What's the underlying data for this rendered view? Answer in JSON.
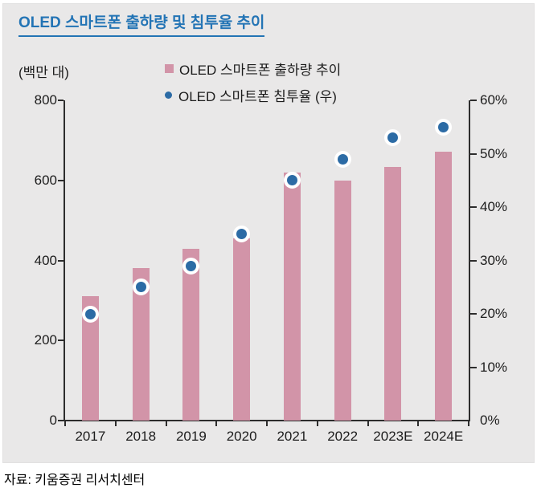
{
  "title": "OLED 스마트폰 출하량 및 침투율 추이",
  "source": "자료: 키움증권 리서치센터",
  "colors": {
    "bar": "#d294a8",
    "dot": "#2c6ba5",
    "dot_ring": "#ffffff",
    "title": "#2374b5",
    "panel_bg": "#e9e8e8",
    "axis": "#2d2d2d",
    "text": "#1c1c1c"
  },
  "chart_data": {
    "type": "bar",
    "title": "OLED 스마트폰 출하량 및 침투율 추이",
    "categories": [
      "2017",
      "2018",
      "2019",
      "2020",
      "2021",
      "2022",
      "2023E",
      "2024E"
    ],
    "series": [
      {
        "name": "OLED 스마트폰 출하량 추이",
        "type": "bar",
        "axis": "left",
        "values": [
          310,
          380,
          430,
          455,
          620,
          600,
          633,
          672
        ]
      },
      {
        "name": "OLED 스마트폰 침투율 (우)",
        "type": "scatter",
        "axis": "right",
        "values": [
          20,
          25,
          29,
          35,
          45,
          49,
          53,
          55
        ]
      }
    ],
    "left_axis": {
      "label": "(백만 대)",
      "ticks": [
        0,
        200,
        400,
        600,
        800
      ],
      "range": [
        0,
        800
      ],
      "suffix": ""
    },
    "right_axis": {
      "label": "",
      "ticks": [
        0,
        10,
        20,
        30,
        40,
        50,
        60
      ],
      "range": [
        0,
        60
      ],
      "suffix": "%"
    },
    "grid": false,
    "legend_position": "top-center"
  }
}
